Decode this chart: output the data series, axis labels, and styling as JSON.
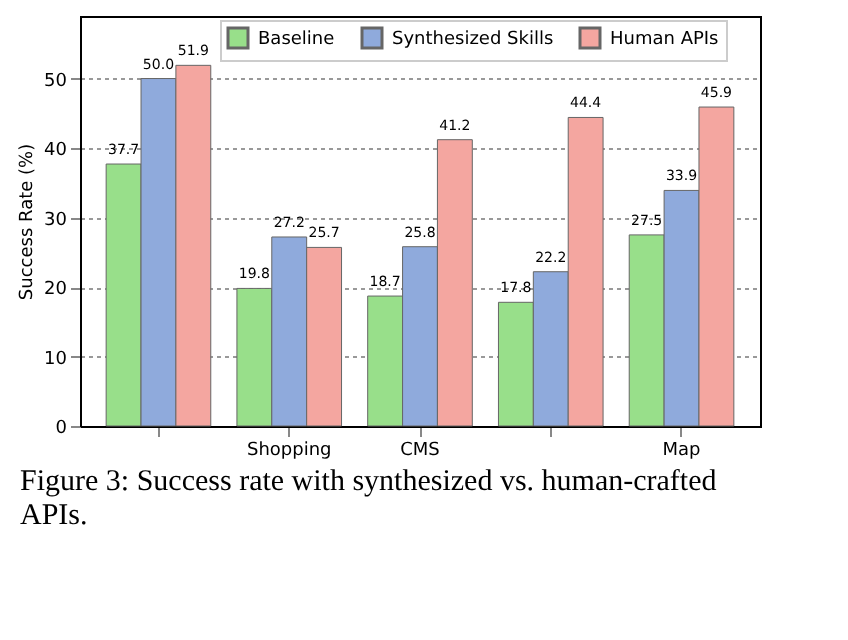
{
  "chart_data": {
    "type": "bar",
    "ylabel": "Success Rate (%)",
    "categories": [
      null,
      "Shopping",
      "CMS",
      null,
      "Map"
    ],
    "series": [
      {
        "name": "Baseline",
        "color": "#98df8a",
        "values": [
          37.7,
          19.8,
          18.7,
          17.8,
          27.5
        ],
        "value_labels": [
          "37.7",
          "19.8",
          "18.7",
          "17.8",
          "27.5"
        ]
      },
      {
        "name": "Synthesized Skills",
        "color": "#8faadc",
        "values": [
          50.0,
          27.2,
          25.8,
          22.2,
          33.9
        ],
        "value_labels": [
          "50.0",
          "27.2",
          "25.8",
          "22.2",
          "33.9"
        ]
      },
      {
        "name": "Human APIs",
        "color": "#f4a6a0",
        "values": [
          51.9,
          25.7,
          41.2,
          44.4,
          45.9
        ],
        "value_labels": [
          "51.9",
          "25.7",
          "41.2",
          "44.4",
          "45.9"
        ]
      }
    ],
    "ylim": [
      0,
      59
    ],
    "yticks": [
      0,
      10,
      20,
      30,
      40,
      50
    ],
    "grid": "y",
    "legend": "top",
    "annotations": [
      "Figure 3: Success rate with synthesized vs. human-crafted APIs."
    ]
  }
}
